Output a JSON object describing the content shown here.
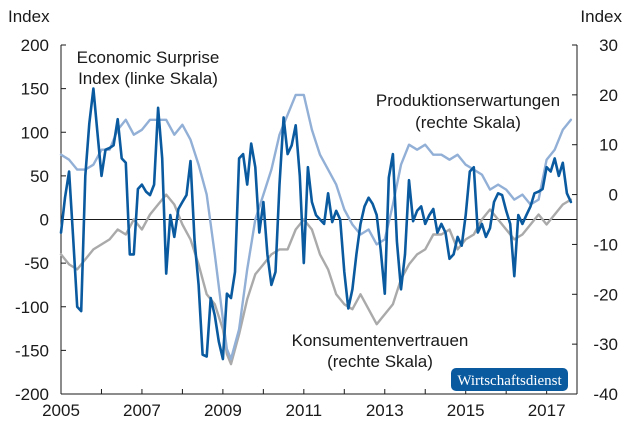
{
  "chart_data": {
    "type": "line",
    "left_unit": "Index",
    "right_unit": "Index",
    "x_range": [
      2005,
      2017.75
    ],
    "x_ticks": [
      "2005",
      "2007",
      "2009",
      "2011",
      "2013",
      "2015",
      "2017"
    ],
    "left_axis": {
      "range": [
        -200,
        200
      ],
      "ticks": [
        "200",
        "150",
        "100",
        "50",
        "0",
        "-50",
        "-100",
        "-150",
        "-200"
      ]
    },
    "right_axis": {
      "range": [
        -40,
        30
      ],
      "ticks": [
        "30",
        "20",
        "10",
        "0",
        "-10",
        "-20",
        "-30",
        "-40"
      ]
    },
    "grid": false,
    "zero_line_left": true,
    "colors": {
      "surprise": "#0a5aa0",
      "produktion": "#92afd6",
      "konsumenten": "#aaaaaa",
      "badge": "#0a5aa0"
    },
    "annotations": {
      "surprise": [
        "Economic Surprise",
        "Index (linke Skala)"
      ],
      "produktion": [
        "Produktionserwartungen",
        "(rechte Skala)"
      ],
      "konsumenten": [
        "Konsumentenvertrauen",
        "(rechte Skala)"
      ]
    },
    "badge": "Wirtschaftsdienst",
    "series": [
      {
        "key": "surprise",
        "axis": "left",
        "x": [
          2005.0,
          2005.1,
          2005.2,
          2005.3,
          2005.4,
          2005.5,
          2005.6,
          2005.7,
          2005.8,
          2005.9,
          2006.0,
          2006.1,
          2006.2,
          2006.3,
          2006.4,
          2006.5,
          2006.6,
          2006.7,
          2006.8,
          2006.9,
          2007.0,
          2007.1,
          2007.2,
          2007.3,
          2007.4,
          2007.5,
          2007.6,
          2007.7,
          2007.8,
          2007.9,
          2008.0,
          2008.1,
          2008.2,
          2008.3,
          2008.4,
          2008.5,
          2008.6,
          2008.7,
          2008.8,
          2008.9,
          2009.0,
          2009.1,
          2009.2,
          2009.3,
          2009.4,
          2009.5,
          2009.6,
          2009.7,
          2009.8,
          2009.9,
          2010.0,
          2010.1,
          2010.2,
          2010.3,
          2010.4,
          2010.5,
          2010.6,
          2010.7,
          2010.8,
          2010.9,
          2011.0,
          2011.1,
          2011.2,
          2011.3,
          2011.4,
          2011.5,
          2011.6,
          2011.7,
          2011.8,
          2011.9,
          2012.0,
          2012.1,
          2012.2,
          2012.3,
          2012.4,
          2012.5,
          2012.6,
          2012.7,
          2012.8,
          2012.9,
          2013.0,
          2013.1,
          2013.2,
          2013.3,
          2013.4,
          2013.5,
          2013.6,
          2013.7,
          2013.8,
          2013.9,
          2014.0,
          2014.1,
          2014.2,
          2014.3,
          2014.4,
          2014.5,
          2014.6,
          2014.7,
          2014.8,
          2014.9,
          2015.0,
          2015.1,
          2015.2,
          2015.3,
          2015.4,
          2015.5,
          2015.6,
          2015.7,
          2015.8,
          2015.9,
          2016.0,
          2016.1,
          2016.2,
          2016.3,
          2016.4,
          2016.5,
          2016.6,
          2016.7,
          2016.8,
          2016.9,
          2017.0,
          2017.1,
          2017.2,
          2017.3,
          2017.4,
          2017.5,
          2017.6
        ],
        "values": [
          -15,
          25,
          55,
          -20,
          -100,
          -105,
          50,
          110,
          150,
          100,
          50,
          80,
          82,
          85,
          115,
          70,
          65,
          -40,
          -40,
          35,
          40,
          32,
          28,
          40,
          128,
          70,
          -62,
          5,
          -20,
          12,
          20,
          28,
          67,
          -25,
          -75,
          -155,
          -157,
          -90,
          -110,
          -140,
          -160,
          -85,
          -90,
          -60,
          70,
          75,
          40,
          87,
          60,
          -15,
          20,
          -40,
          -75,
          -60,
          40,
          117,
          75,
          85,
          108,
          50,
          -50,
          60,
          20,
          5,
          0,
          -5,
          30,
          -3,
          10,
          0,
          -60,
          -102,
          -80,
          -40,
          -5,
          15,
          25,
          18,
          5,
          -35,
          -85,
          48,
          75,
          -25,
          -80,
          -40,
          45,
          -2,
          10,
          15,
          -5,
          5,
          12,
          -15,
          -5,
          -15,
          -45,
          -40,
          -20,
          -30,
          5,
          55,
          60,
          -15,
          -5,
          -20,
          -10,
          20,
          30,
          28,
          10,
          -5,
          -65,
          5,
          -5,
          5,
          15,
          30,
          32,
          35,
          60,
          55,
          70,
          50,
          65,
          30,
          20
        ]
      },
      {
        "key": "produktion",
        "axis": "right",
        "x": [
          2005.0,
          2005.2,
          2005.4,
          2005.6,
          2005.8,
          2006.0,
          2006.2,
          2006.4,
          2006.6,
          2006.8,
          2007.0,
          2007.2,
          2007.4,
          2007.6,
          2007.8,
          2008.0,
          2008.2,
          2008.4,
          2008.6,
          2008.8,
          2009.0,
          2009.1,
          2009.2,
          2009.4,
          2009.6,
          2009.8,
          2010.0,
          2010.2,
          2010.4,
          2010.6,
          2010.8,
          2011.0,
          2011.2,
          2011.4,
          2011.6,
          2011.8,
          2012.0,
          2012.2,
          2012.4,
          2012.6,
          2012.8,
          2013.0,
          2013.2,
          2013.4,
          2013.6,
          2013.8,
          2014.0,
          2014.2,
          2014.4,
          2014.6,
          2014.8,
          2015.0,
          2015.2,
          2015.4,
          2015.6,
          2015.8,
          2016.0,
          2016.2,
          2016.4,
          2016.6,
          2016.8,
          2017.0,
          2017.2,
          2017.4,
          2017.6
        ],
        "values": [
          8,
          7,
          5,
          5,
          6,
          9,
          9,
          13,
          15,
          12,
          13,
          15,
          15,
          15,
          12,
          14,
          11,
          6,
          0,
          -12,
          -25,
          -31,
          -33,
          -27,
          -15,
          -5,
          0,
          5,
          12,
          16,
          20,
          20,
          13,
          8,
          5,
          2,
          -3,
          -6,
          -8,
          -7,
          -10,
          -9,
          -2,
          6,
          10,
          9,
          10,
          8,
          8,
          7,
          8,
          6,
          5,
          4,
          1,
          2,
          1,
          -1,
          0,
          -2,
          -1,
          7,
          9,
          13,
          15
        ]
      },
      {
        "key": "konsumenten",
        "axis": "right",
        "x": [
          2005.0,
          2005.2,
          2005.4,
          2005.6,
          2005.8,
          2006.0,
          2006.2,
          2006.4,
          2006.6,
          2006.8,
          2007.0,
          2007.2,
          2007.4,
          2007.6,
          2007.8,
          2008.0,
          2008.2,
          2008.4,
          2008.6,
          2008.8,
          2009.0,
          2009.1,
          2009.2,
          2009.4,
          2009.6,
          2009.8,
          2010.0,
          2010.2,
          2010.4,
          2010.6,
          2010.8,
          2011.0,
          2011.2,
          2011.4,
          2011.6,
          2011.8,
          2012.0,
          2012.2,
          2012.4,
          2012.6,
          2012.8,
          2013.0,
          2013.2,
          2013.4,
          2013.6,
          2013.8,
          2014.0,
          2014.2,
          2014.4,
          2014.6,
          2014.8,
          2015.0,
          2015.2,
          2015.4,
          2015.6,
          2015.8,
          2016.0,
          2016.2,
          2016.4,
          2016.6,
          2016.8,
          2017.0,
          2017.2,
          2017.4,
          2017.6
        ],
        "values": [
          -12,
          -14,
          -15,
          -13,
          -11,
          -10,
          -9,
          -7,
          -8,
          -5,
          -7,
          -4,
          -2,
          0,
          -2,
          -6,
          -9,
          -14,
          -20,
          -22,
          -27,
          -32,
          -34,
          -28,
          -21,
          -16,
          -14,
          -12,
          -11,
          -11,
          -7,
          -5,
          -7,
          -12,
          -15,
          -20,
          -22,
          -23,
          -20,
          -23,
          -26,
          -24,
          -22,
          -17,
          -14,
          -12,
          -11,
          -8,
          -8,
          -7,
          -11,
          -9,
          -8,
          -5,
          -3,
          -5,
          -7,
          -9,
          -8,
          -6,
          -4,
          -6,
          -4,
          -2,
          -1
        ]
      }
    ]
  }
}
